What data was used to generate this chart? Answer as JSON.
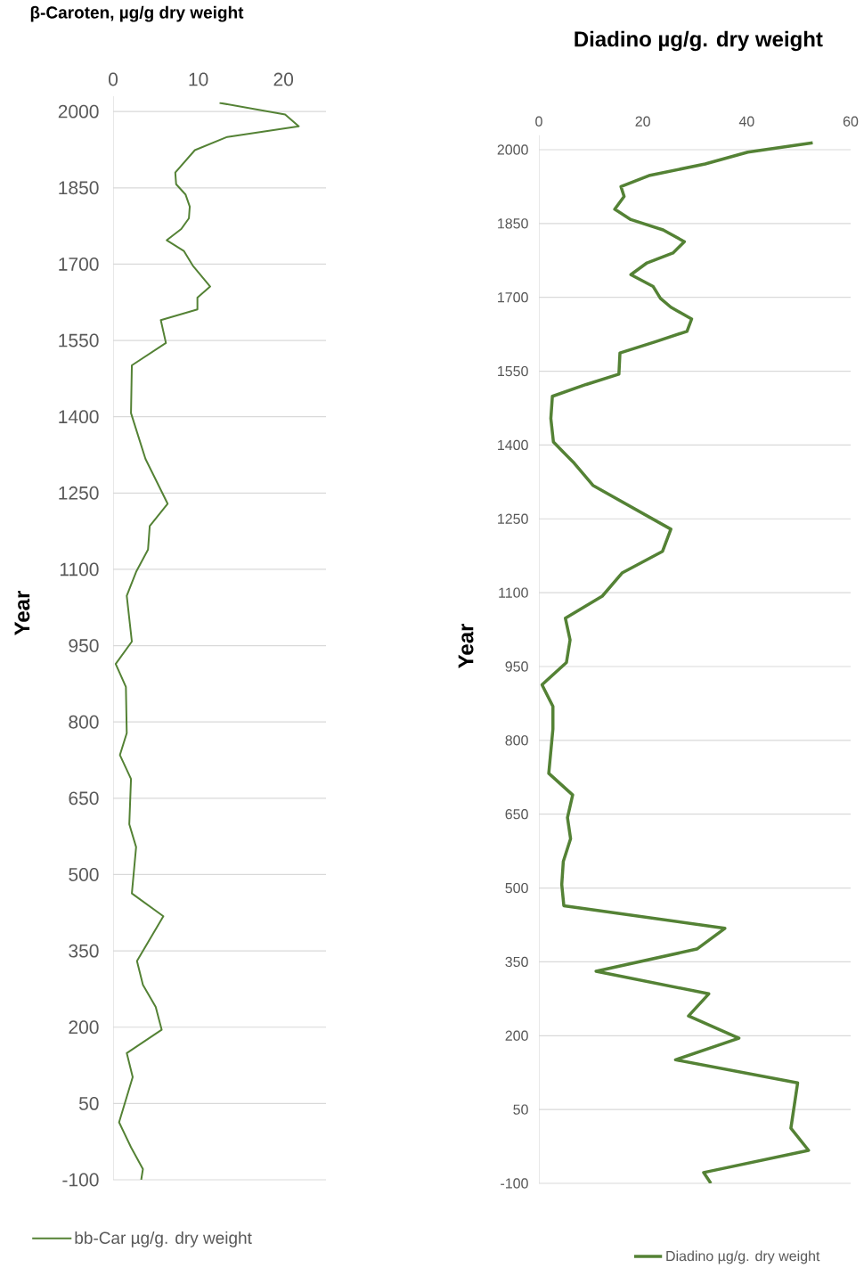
{
  "chart_data": [
    {
      "type": "line",
      "title": "β-Caroten, µg/g dry weight",
      "ylabel": "Year",
      "series": [
        {
          "name": "bb-Car µg/g. dry weight",
          "color": "#548235",
          "x": [
            12.5,
            20.2,
            21.8,
            13.4,
            9.6,
            7.3,
            7.4,
            8.5,
            9.0,
            8.9,
            8.0,
            6.3,
            8.3,
            9.4,
            10.4,
            11.4,
            9.9,
            9.9,
            5.6,
            6.2,
            2.2,
            2.1,
            3.8,
            6.4,
            4.3,
            4.1,
            2.7,
            1.6,
            2.2,
            0.3,
            1.5,
            1.6,
            0.8,
            2.1,
            1.9,
            2.7,
            2.2,
            5.9,
            2.8,
            3.5,
            5.0,
            5.7,
            1.6,
            2.3,
            0.7,
            2.1,
            3.5,
            3.3
          ],
          "values": [
            2017,
            1994,
            1971,
            1950,
            1924,
            1880,
            1857,
            1837,
            1813,
            1790,
            1769,
            1747,
            1726,
            1696,
            1676,
            1656,
            1634,
            1611,
            1590,
            1545,
            1501,
            1407,
            1317,
            1229,
            1185,
            1139,
            1095,
            1048,
            958,
            914,
            869,
            778,
            735,
            688,
            599,
            554,
            463,
            418,
            330,
            283,
            240,
            195,
            149,
            102,
            13,
            -36,
            -79,
            -100
          ]
        }
      ],
      "xlim": [
        0,
        25
      ],
      "xticks": [
        0,
        10,
        20
      ],
      "ylim": [
        -100,
        2030
      ],
      "yticks": [
        -100,
        50,
        200,
        350,
        500,
        650,
        800,
        950,
        1100,
        1250,
        1400,
        1550,
        1700,
        1850,
        2000
      ],
      "grid": "y",
      "legend": "bottom left"
    },
    {
      "type": "line",
      "title": "Diadino µg/g. dry weight",
      "ylabel": "Year",
      "series": [
        {
          "name": "Diadino µg/g. dry weight",
          "color": "#548235",
          "x": [
            52.7,
            40.2,
            32.0,
            21.4,
            15.8,
            16.4,
            14.6,
            17.7,
            23.9,
            28.0,
            25.8,
            20.8,
            17.7,
            22.0,
            23.4,
            25.4,
            29.4,
            28.5,
            22.5,
            15.6,
            15.4,
            9.1,
            2.6,
            2.3,
            2.8,
            6.8,
            10.4,
            25.4,
            23.8,
            16.0,
            12.2,
            5.1,
            6.0,
            5.3,
            0.6,
            2.7,
            2.7,
            1.9,
            6.5,
            5.5,
            6.1,
            4.7,
            4.4,
            4.8,
            35.8,
            30.4,
            11.0,
            32.7,
            28.8,
            38.5,
            26.3,
            49.8,
            48.5,
            51.9,
            31.7,
            33.1
          ],
          "values": [
            2014,
            1995,
            1971,
            1948,
            1925,
            1905,
            1879,
            1858,
            1837,
            1813,
            1790,
            1770,
            1746,
            1722,
            1698,
            1680,
            1656,
            1631,
            1610,
            1587,
            1544,
            1523,
            1499,
            1454,
            1406,
            1363,
            1318,
            1229,
            1184,
            1140,
            1093,
            1048,
            1004,
            958,
            913,
            869,
            823,
            733,
            689,
            643,
            600,
            554,
            507,
            464,
            418,
            376,
            331,
            285,
            240,
            195,
            151,
            104,
            12,
            -33,
            -78,
            -100
          ]
        }
      ],
      "xlim": [
        0,
        60
      ],
      "xticks": [
        0,
        20,
        40,
        60
      ],
      "ylim": [
        -100,
        2030
      ],
      "yticks": [
        -100,
        50,
        200,
        350,
        500,
        650,
        800,
        950,
        1100,
        1250,
        1400,
        1550,
        1700,
        1850,
        2000
      ],
      "grid": "y",
      "legend": "bottom right"
    }
  ]
}
